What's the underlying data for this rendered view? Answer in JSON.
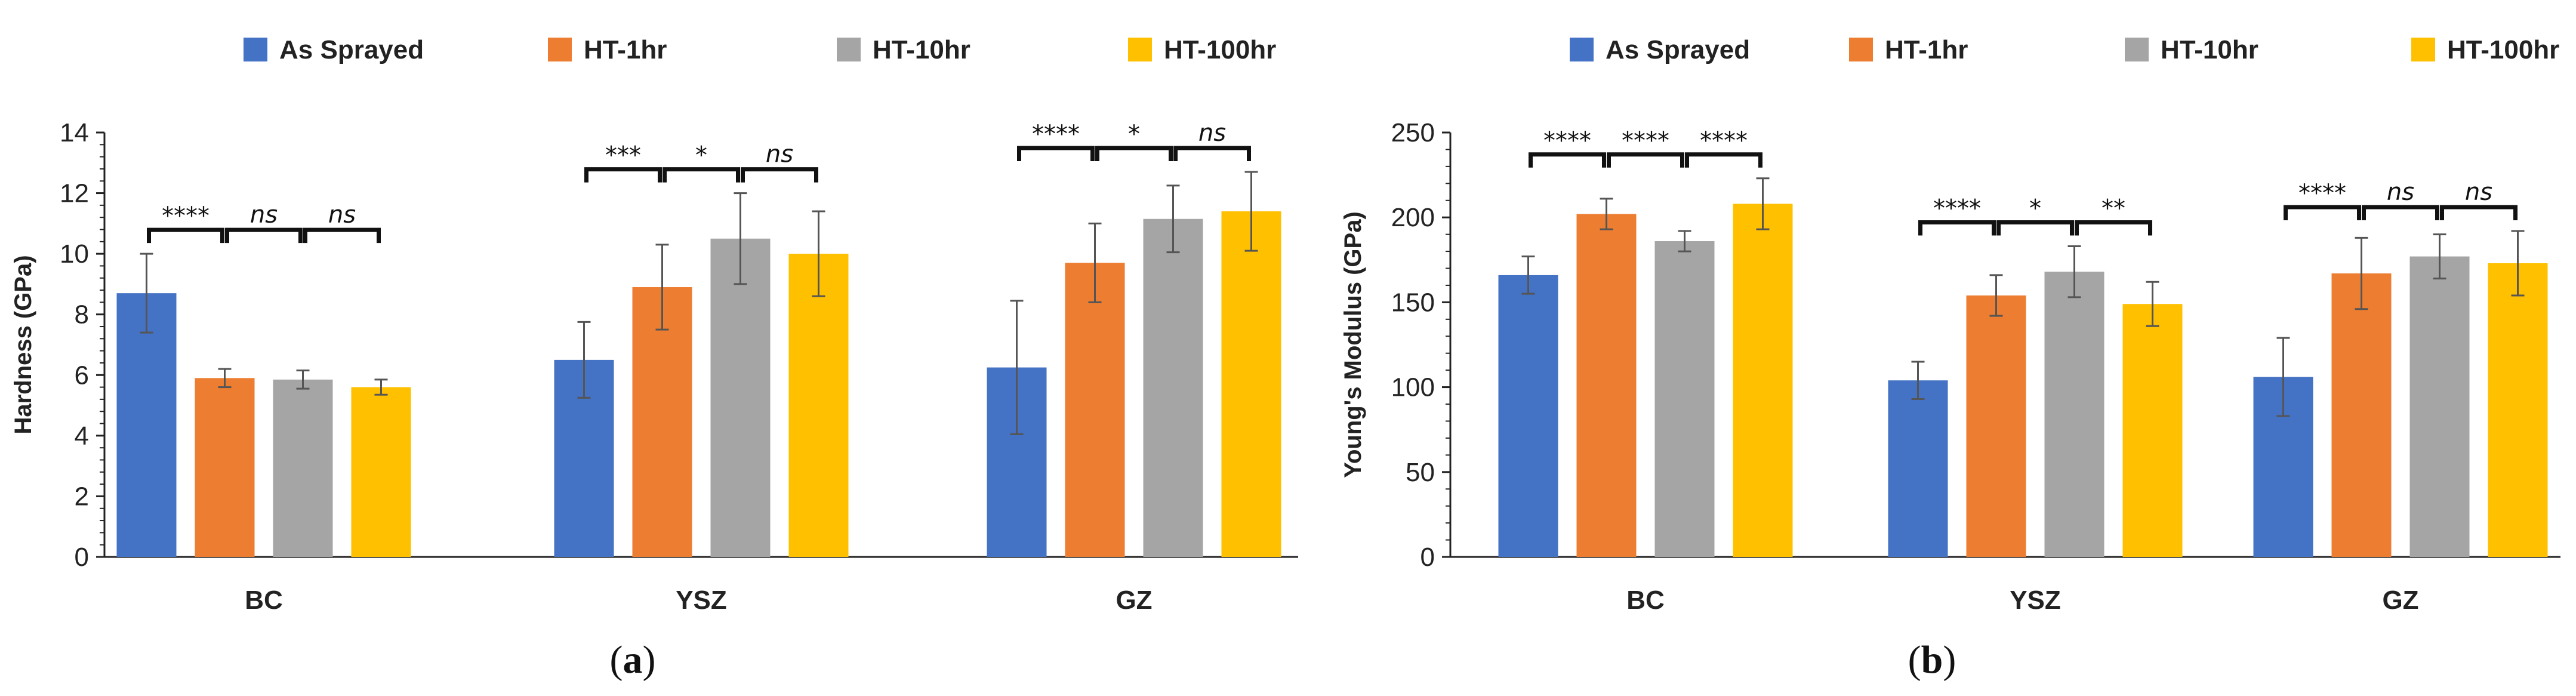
{
  "legend": [
    {
      "name": "As Sprayed",
      "color": "#4472C4"
    },
    {
      "name": "HT-1hr",
      "color": "#ED7D31"
    },
    {
      "name": "HT-10hr",
      "color": "#A5A5A5"
    },
    {
      "name": "HT-100hr",
      "color": "#FFC000"
    }
  ],
  "chart_data": [
    {
      "type": "bar",
      "panel_label": "(a)",
      "panel_letter": "a",
      "ylabel": "Hardness (GPa)",
      "ylim": [
        0,
        14
      ],
      "yticks": [
        0,
        2,
        4,
        6,
        8,
        10,
        12,
        14
      ],
      "categories": [
        "BC",
        "YSZ",
        "GZ"
      ],
      "series": [
        {
          "name": "As Sprayed",
          "values": [
            8.7,
            6.5,
            6.25
          ],
          "errors": [
            1.3,
            1.25,
            2.2
          ]
        },
        {
          "name": "HT-1hr",
          "values": [
            5.9,
            8.9,
            9.7
          ],
          "errors": [
            0.3,
            1.4,
            1.3
          ]
        },
        {
          "name": "HT-10hr",
          "values": [
            5.85,
            10.5,
            11.15
          ],
          "errors": [
            0.3,
            1.5,
            1.1
          ]
        },
        {
          "name": "HT-100hr",
          "values": [
            5.6,
            10.0,
            11.4
          ],
          "errors": [
            0.25,
            1.4,
            1.3
          ]
        }
      ],
      "significance": [
        {
          "category": 0,
          "pairs": [
            "****",
            "ns",
            "ns"
          ]
        },
        {
          "category": 1,
          "pairs": [
            "***",
            "*",
            "ns"
          ]
        },
        {
          "category": 2,
          "pairs": [
            "****",
            "*",
            "ns"
          ]
        }
      ]
    },
    {
      "type": "bar",
      "panel_label": "(b)",
      "panel_letter": "b",
      "ylabel": "Young's Modulus (GPa)",
      "ylim": [
        0,
        250
      ],
      "yticks": [
        0,
        50,
        100,
        150,
        200,
        250
      ],
      "categories": [
        "BC",
        "YSZ",
        "GZ"
      ],
      "series": [
        {
          "name": "As Sprayed",
          "values": [
            166,
            104,
            106
          ],
          "errors": [
            11,
            11,
            23
          ]
        },
        {
          "name": "HT-1hr",
          "values": [
            202,
            154,
            167
          ],
          "errors": [
            9,
            12,
            21
          ]
        },
        {
          "name": "HT-10hr",
          "values": [
            186,
            168,
            177
          ],
          "errors": [
            6,
            15,
            13
          ]
        },
        {
          "name": "HT-100hr",
          "values": [
            208,
            149,
            173
          ],
          "errors": [
            15,
            13,
            19
          ]
        }
      ],
      "significance": [
        {
          "category": 0,
          "pairs": [
            "****",
            "****",
            "****"
          ]
        },
        {
          "category": 1,
          "pairs": [
            "****",
            "*",
            "**"
          ]
        },
        {
          "category": 2,
          "pairs": [
            "****",
            "ns",
            "ns"
          ]
        }
      ]
    }
  ]
}
